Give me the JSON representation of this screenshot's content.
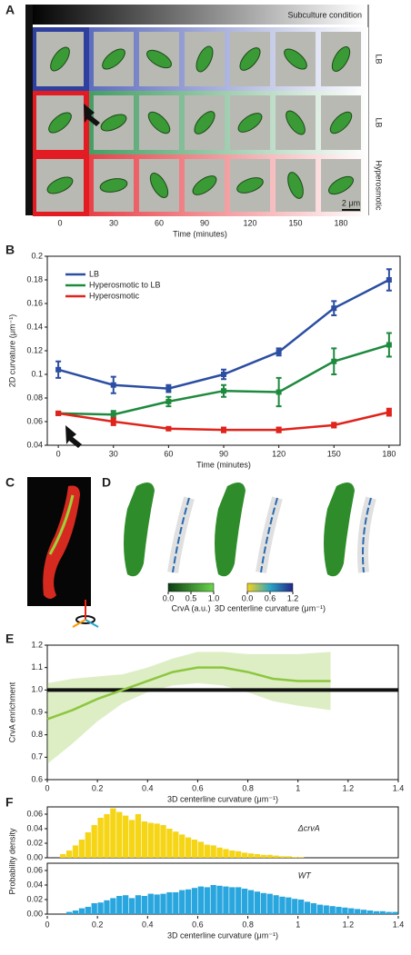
{
  "panel_a": {
    "label": "A",
    "header": "Subculture condition",
    "rows": [
      "LB",
      "LB",
      "Hyperosmotic"
    ],
    "times": [
      0,
      30,
      60,
      90,
      120,
      150,
      180
    ],
    "xlabel": "Time (minutes)",
    "scale_bar": "2 μm"
  },
  "panel_c": {
    "label": "C"
  },
  "panel_d": {
    "label": "D",
    "colorbars": [
      {
        "label": "CrvA (a.u.)",
        "ticks": [
          {
            "value": 0,
            "label": "0.0"
          },
          0.5,
          {
            "value": 1,
            "label": "1.0"
          }
        ]
      },
      {
        "label": "3D centerline curvature (μm⁻¹)",
        "ticks": [
          {
            "value": 0,
            "label": "0.0"
          },
          0.6,
          1.2
        ]
      }
    ]
  },
  "chart_data": [
    {
      "type": "line",
      "panel": "B",
      "xlabel": "Time (minutes)",
      "ylabel": "2D curvature (μm⁻¹)",
      "x": [
        0,
        30,
        60,
        90,
        120,
        150,
        180
      ],
      "xlim": [
        -6,
        186
      ],
      "xticks": [
        0,
        30,
        60,
        90,
        120,
        150,
        180
      ],
      "ylim": [
        0.04,
        0.2
      ],
      "yticks": [
        0.04,
        0.06,
        0.08,
        0.1,
        0.12,
        0.14,
        0.16,
        0.18,
        0.2
      ],
      "legend": "upper left",
      "series": [
        {
          "name": "LB",
          "color": "#2b4ea2",
          "values": [
            0.104,
            0.091,
            0.088,
            0.1,
            0.119,
            0.156,
            0.18
          ],
          "errors": [
            0.007,
            0.007,
            0.003,
            0.004,
            0.003,
            0.006,
            0.009
          ]
        },
        {
          "name": "Hyperosmotic to LB",
          "color": "#1e8a3e",
          "values": [
            0.067,
            0.066,
            0.077,
            0.086,
            0.085,
            0.111,
            0.125
          ],
          "errors": [
            0.001,
            0.003,
            0.004,
            0.005,
            0.012,
            0.011,
            0.01
          ]
        },
        {
          "name": "Hyperosmotic",
          "color": "#e0241b",
          "values": [
            0.067,
            0.06,
            0.054,
            0.053,
            0.053,
            0.057,
            0.068
          ],
          "errors": [
            0.001,
            0.003,
            0.001,
            0.002,
            0.002,
            0.002,
            0.003
          ]
        }
      ]
    },
    {
      "type": "band",
      "panel": "E",
      "xlabel": "3D centerline curvature (μm⁻¹)",
      "ylabel": "CrvA enrichment",
      "x": [
        0,
        0.1,
        0.2,
        0.3,
        0.4,
        0.5,
        0.6,
        0.7,
        0.8,
        0.9,
        1,
        1.13
      ],
      "xlim": [
        0,
        1.4
      ],
      "xticks": [
        0,
        0.2,
        0.4,
        0.6,
        0.8,
        1,
        1.2,
        1.4
      ],
      "ylim": [
        0.6,
        1.2
      ],
      "yticks": [
        0.6,
        0.7,
        0.8,
        0.9,
        {
          "value": 1,
          "label": "1.0"
        },
        1.1,
        1.2
      ],
      "hline": 1,
      "series": [
        {
          "color": "#8dc63f",
          "values": [
            0.87,
            0.91,
            0.96,
            1.0,
            1.04,
            1.08,
            1.1,
            1.1,
            1.08,
            1.05,
            1.04,
            1.04
          ],
          "lower": [
            0.67,
            0.76,
            0.86,
            0.94,
            0.99,
            1.02,
            1.03,
            1.02,
            0.99,
            0.95,
            0.93,
            0.91
          ],
          "upper": [
            1.03,
            1.05,
            1.06,
            1.07,
            1.1,
            1.14,
            1.17,
            1.17,
            1.16,
            1.16,
            1.16,
            1.17
          ]
        }
      ]
    },
    {
      "type": "histogram",
      "panel": "F",
      "xlabel": "3D centerline curvature (μm⁻¹)",
      "ylabel": "Probability density",
      "bins": [
        0,
        0.025,
        0.05,
        0.075,
        0.1,
        0.125,
        0.15,
        0.175,
        0.2,
        0.225,
        0.25,
        0.275,
        0.3,
        0.325,
        0.35,
        0.375,
        0.4,
        0.425,
        0.45,
        0.475,
        0.5,
        0.525,
        0.55,
        0.575,
        0.6,
        0.625,
        0.65,
        0.675,
        0.7,
        0.725,
        0.75,
        0.775,
        0.8,
        0.825,
        0.85,
        0.875,
        0.9,
        0.925,
        0.95,
        0.975,
        1,
        1.025,
        1.05,
        1.075,
        1.1,
        1.125,
        1.15,
        1.175,
        1.2,
        1.225,
        1.25,
        1.275,
        1.3,
        1.325,
        1.35,
        1.375,
        1.4
      ],
      "xlim": [
        0,
        1.4
      ],
      "xticks": [
        0,
        0.2,
        0.4,
        0.6,
        0.8,
        1,
        1.2,
        1.4
      ],
      "ylim": [
        0,
        0.07
      ],
      "yticks": [
        {
          "value": 0,
          "label": "0.00"
        },
        0.02,
        0.04,
        0.06
      ],
      "series": [
        {
          "name": "ΔcrvA",
          "color": "#f5d516",
          "values": [
            0,
            0,
            0.005,
            0.01,
            0.017,
            0.025,
            0.035,
            0.045,
            0.055,
            0.06,
            0.068,
            0.063,
            0.058,
            0.052,
            0.06,
            0.05,
            0.048,
            0.047,
            0.045,
            0.04,
            0.036,
            0.032,
            0.028,
            0.025,
            0.022,
            0.018,
            0.017,
            0.014,
            0.012,
            0.01,
            0.009,
            0.007,
            0.006,
            0.005,
            0.004,
            0.004,
            0.003,
            0.002,
            0.002,
            0.001,
            0.001,
            0,
            0,
            0,
            0,
            0,
            0,
            0,
            0,
            0,
            0,
            0,
            0,
            0,
            0,
            0
          ]
        },
        {
          "name": "WT",
          "color": "#2aa6df",
          "values": [
            0,
            0,
            0,
            0.003,
            0.005,
            0.008,
            0.01,
            0.015,
            0.016,
            0.019,
            0.022,
            0.025,
            0.026,
            0.022,
            0.026,
            0.025,
            0.028,
            0.027,
            0.028,
            0.03,
            0.03,
            0.033,
            0.034,
            0.036,
            0.038,
            0.037,
            0.04,
            0.039,
            0.038,
            0.037,
            0.037,
            0.035,
            0.033,
            0.031,
            0.029,
            0.028,
            0.026,
            0.024,
            0.023,
            0.021,
            0.02,
            0.017,
            0.015,
            0.013,
            0.012,
            0.011,
            0.01,
            0.009,
            0.008,
            0.007,
            0.006,
            0.005,
            0.004,
            0.004,
            0.003,
            0.003
          ]
        }
      ]
    }
  ]
}
